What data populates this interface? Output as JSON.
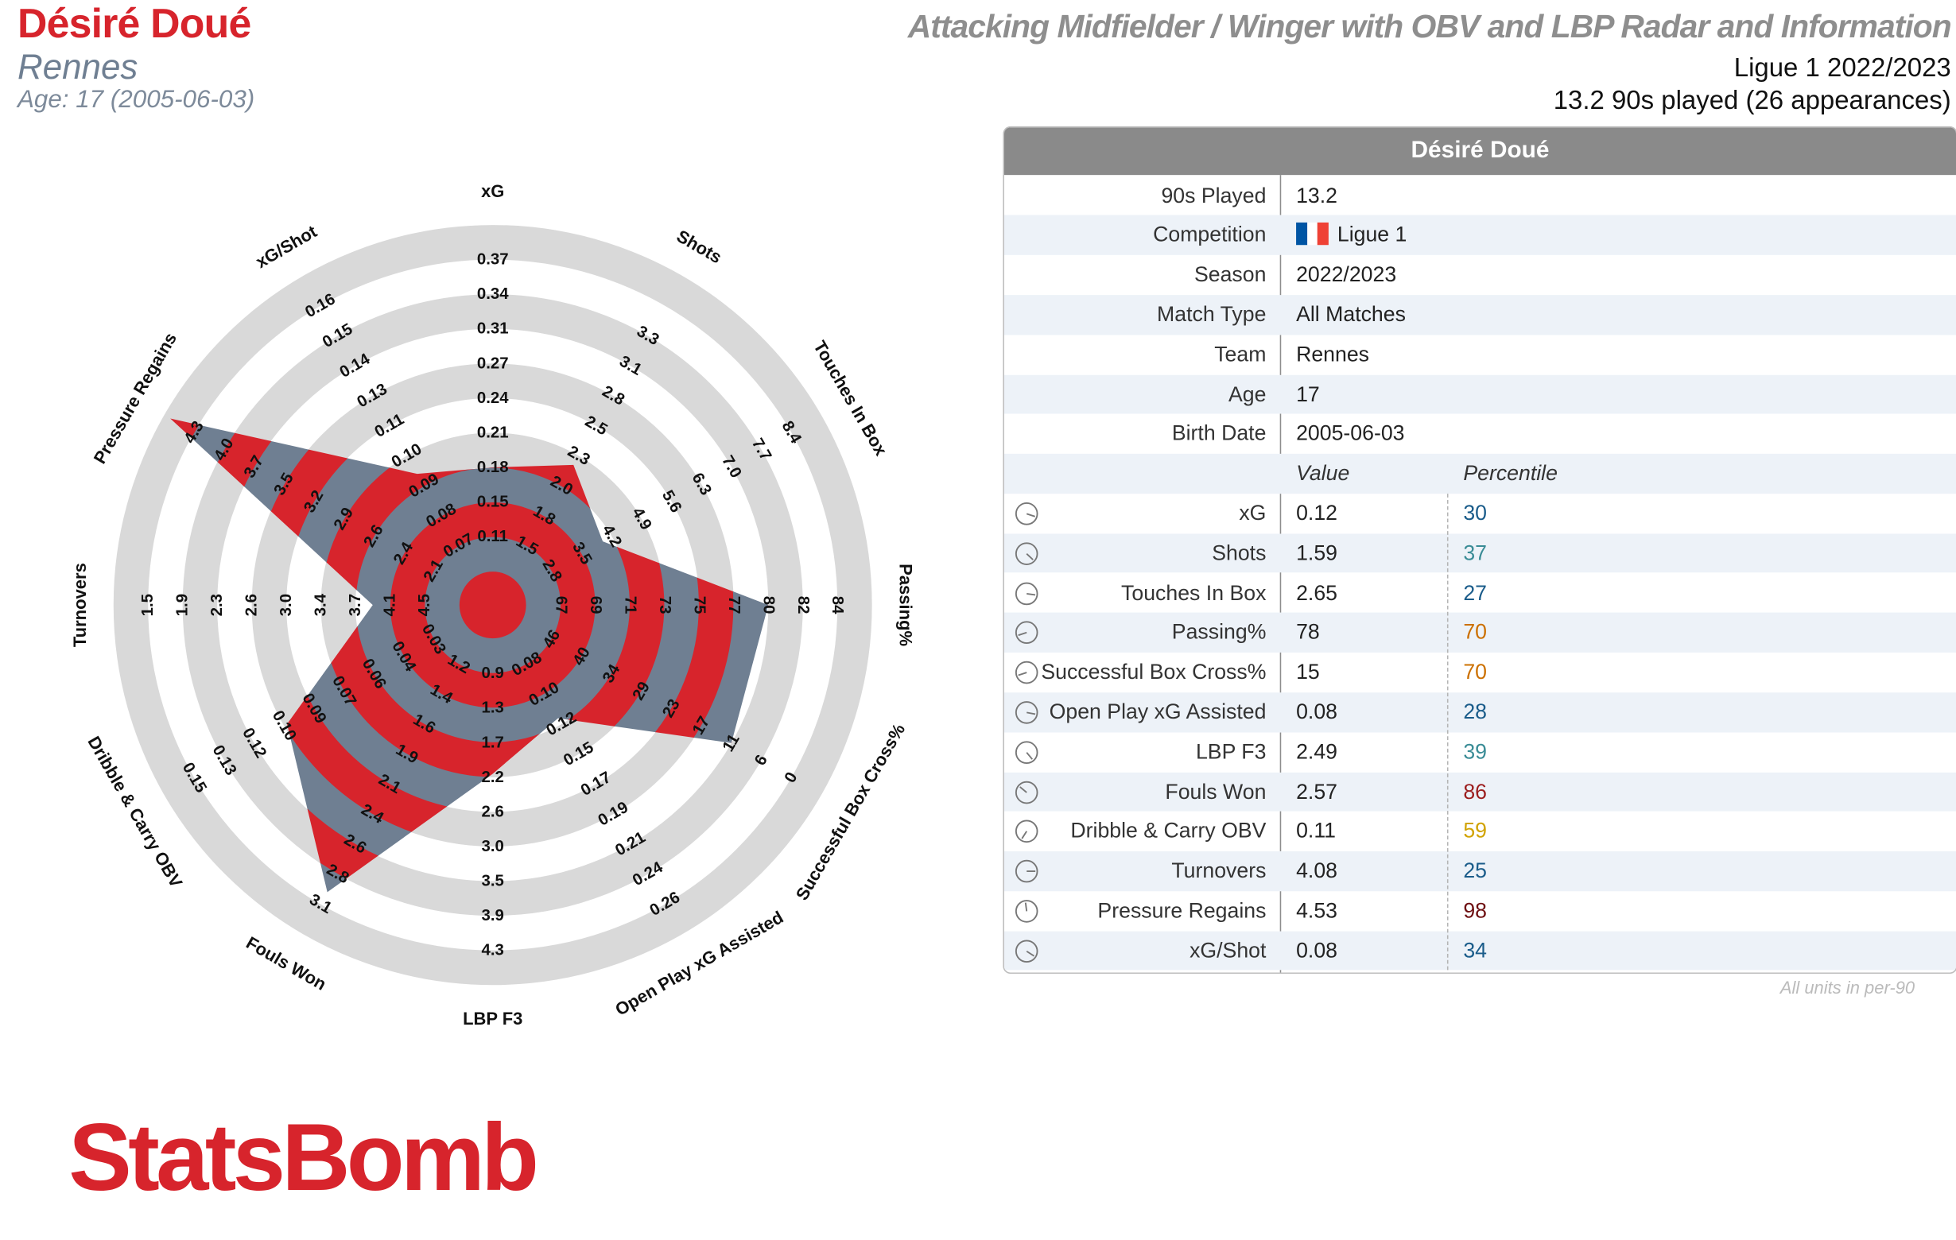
{
  "header": {
    "player_name": "Désiré Doué",
    "team": "Rennes",
    "age_line": "Age: 17 (2005-06-03)",
    "report_title": "Attacking Midfielder / Winger with OBV and LBP Radar and Information",
    "league_season": "Ligue 1 2022/2023",
    "played_line": "13.2 90s played (26 appearances)"
  },
  "colors": {
    "brand_red": "#d7242c",
    "radar_slate": "#6f7f92",
    "ring_grey": "#d9d9d9",
    "pct_low": "#1a5c8a",
    "pct_mid": "#3a8c96",
    "pct_amber": "#cc7000",
    "pct_gold": "#d1a300",
    "pct_high": "#9c1e1e",
    "pct_top": "#6e0f12",
    "flag_blue": "#0055a4",
    "flag_white": "#ffffff",
    "flag_red": "#ef4135"
  },
  "info_table": {
    "title": "Désiré Doué",
    "rows": [
      {
        "label": "90s Played",
        "value": "13.2"
      },
      {
        "label": "Competition",
        "value": "Ligue 1",
        "icon": "france-flag-icon"
      },
      {
        "label": "Season",
        "value": "2022/2023"
      },
      {
        "label": "Match Type",
        "value": "All Matches"
      },
      {
        "label": "Team",
        "value": "Rennes"
      },
      {
        "label": "Age",
        "value": "17"
      },
      {
        "label": "Birth Date",
        "value": "2005-06-03"
      }
    ],
    "value_header": "Value",
    "percentile_header": "Percentile",
    "metric_icon": "percentile-gauge-icon",
    "units_note": "All units in per-90"
  },
  "logo": {
    "text": "StatsBomb"
  },
  "chart_data": {
    "type": "radar",
    "title": "",
    "ring_count": 10,
    "axes": [
      {
        "name": "xG",
        "value": "0.12",
        "percentile": 30,
        "ticks": [
          "0.11",
          "0.15",
          "0.18",
          "0.21",
          "0.24",
          "0.27",
          "0.31",
          "0.34",
          "0.37"
        ]
      },
      {
        "name": "Shots",
        "value": "1.59",
        "percentile": 37,
        "ticks": [
          "1.5",
          "1.8",
          "2.0",
          "2.3",
          "2.5",
          "2.8",
          "3.1",
          "3.3"
        ]
      },
      {
        "name": "Touches In Box",
        "value": "2.65",
        "percentile": 27,
        "ticks": [
          "2.8",
          "3.5",
          "4.2",
          "4.9",
          "5.6",
          "6.3",
          "7.0",
          "7.7",
          "8.4"
        ]
      },
      {
        "name": "Passing%",
        "value": "78",
        "percentile": 70,
        "ticks": [
          "67",
          "69",
          "71",
          "73",
          "75",
          "77",
          "80",
          "82",
          "84"
        ]
      },
      {
        "name": "Successful Box Cross%",
        "value": "15",
        "percentile": 70,
        "ticks": [
          "46",
          "40",
          "34",
          "29",
          "23",
          "17",
          "11",
          "6",
          "0"
        ]
      },
      {
        "name": "Open Play xG Assisted",
        "value": "0.08",
        "percentile": 28,
        "ticks": [
          "0.08",
          "0.10",
          "0.12",
          "0.15",
          "0.17",
          "0.19",
          "0.21",
          "0.24",
          "0.26"
        ]
      },
      {
        "name": "LBP F3",
        "value": "2.49",
        "percentile": 39,
        "ticks": [
          "0.9",
          "1.3",
          "1.7",
          "2.2",
          "2.6",
          "3.0",
          "3.5",
          "3.9",
          "4.3"
        ]
      },
      {
        "name": "Fouls Won",
        "value": "2.57",
        "percentile": 86,
        "ticks": [
          "1.2",
          "1.4",
          "1.6",
          "1.9",
          "2.1",
          "2.4",
          "2.6",
          "2.8",
          "3.1"
        ]
      },
      {
        "name": "Dribble & Carry OBV",
        "value": "0.11",
        "percentile": 59,
        "ticks": [
          "0.03",
          "0.04",
          "0.06",
          "0.07",
          "0.09",
          "0.10",
          "0.12",
          "0.13",
          "0.15"
        ]
      },
      {
        "name": "Turnovers",
        "value": "4.08",
        "percentile": 25,
        "ticks": [
          "4.5",
          "4.1",
          "3.7",
          "3.4",
          "3.0",
          "2.6",
          "2.3",
          "1.9",
          "1.5"
        ]
      },
      {
        "name": "Pressure Regains",
        "value": "4.53",
        "percentile": 98,
        "ticks": [
          "2.1",
          "2.4",
          "2.6",
          "2.9",
          "3.2",
          "3.5",
          "3.7",
          "4.0",
          "4.3"
        ]
      },
      {
        "name": "xG/Shot",
        "value": "0.08",
        "percentile": 34,
        "ticks": [
          "0.07",
          "0.08",
          "0.09",
          "0.10",
          "0.11",
          "0.13",
          "0.14",
          "0.15",
          "0.16"
        ]
      }
    ]
  }
}
